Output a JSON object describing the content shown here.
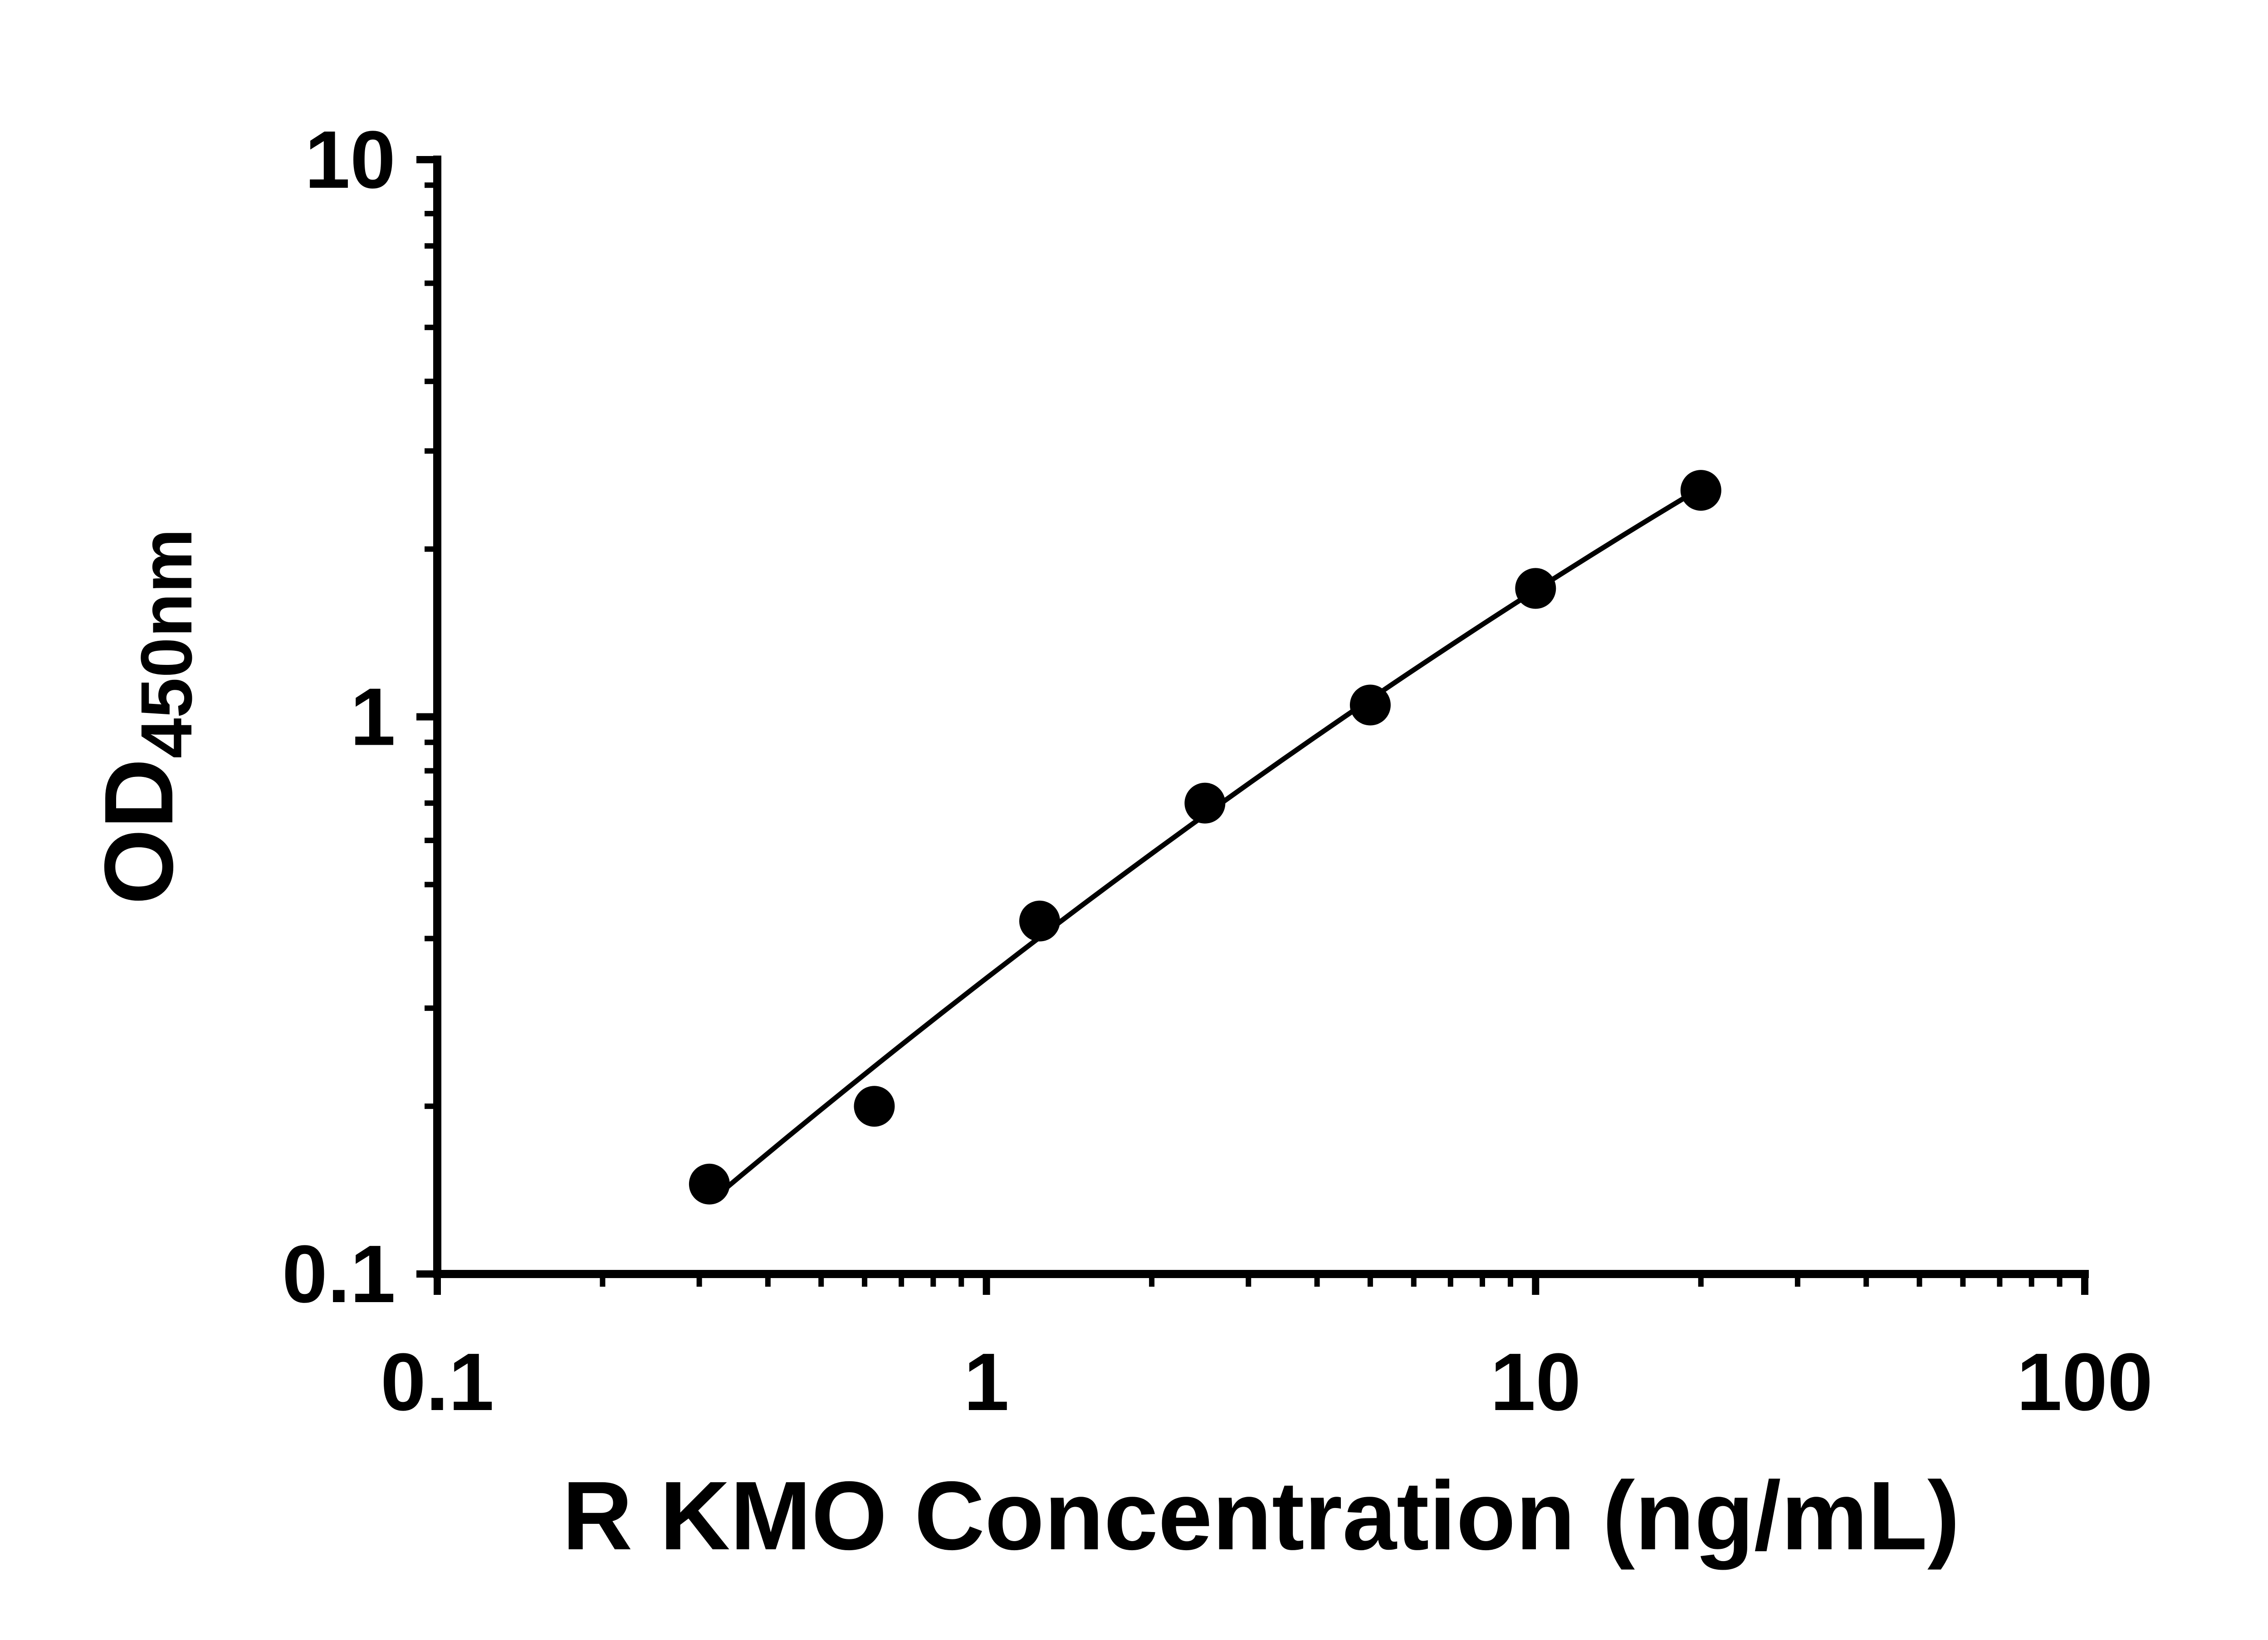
{
  "chart_data": {
    "type": "scatter",
    "xlabel": "R KMO Concentration (ng/mL)",
    "ylabel": "OD",
    "ylabel_subscript": "450nm",
    "xscale": "log",
    "yscale": "log",
    "xlim": [
      0.1,
      100
    ],
    "ylim": [
      0.1,
      10
    ],
    "x_ticks": [
      0.1,
      1,
      10,
      100
    ],
    "x_tick_labels": [
      "0.1",
      "1",
      "10",
      "100"
    ],
    "y_ticks": [
      0.1,
      1,
      10
    ],
    "y_tick_labels": [
      "0.1",
      "1",
      "10"
    ],
    "grid": false,
    "legend": false,
    "colors": {
      "marker": "#000000",
      "line": "#000000",
      "axis": "#000000",
      "background": "#ffffff"
    },
    "series": [
      {
        "marker": "circle",
        "line": "smooth-fit-loglog",
        "points": [
          {
            "x": 0.313,
            "y": 0.145
          },
          {
            "x": 0.625,
            "y": 0.2
          },
          {
            "x": 1.25,
            "y": 0.43
          },
          {
            "x": 2.5,
            "y": 0.7
          },
          {
            "x": 5,
            "y": 1.05
          },
          {
            "x": 10,
            "y": 1.7
          },
          {
            "x": 20,
            "y": 2.55
          }
        ]
      }
    ]
  }
}
